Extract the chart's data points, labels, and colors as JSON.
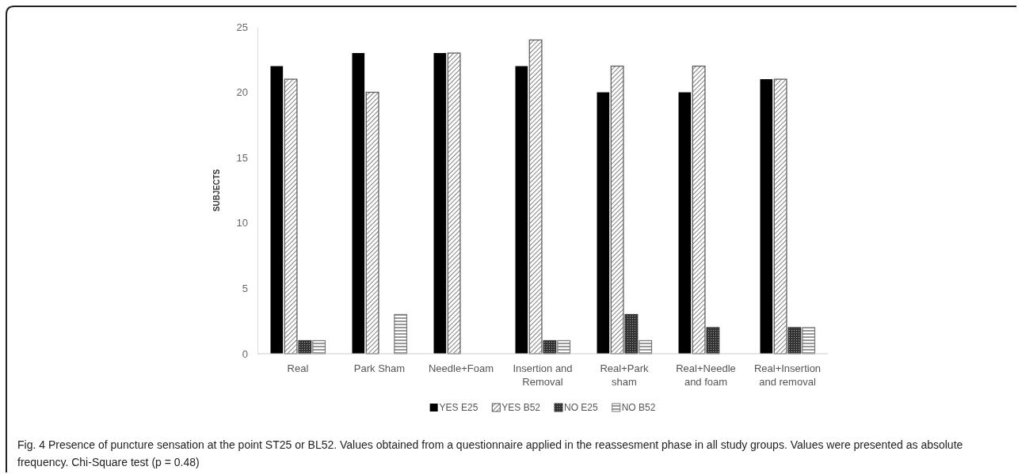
{
  "chart_data": {
    "type": "bar",
    "ylabel": "SUBJECTS",
    "categories": [
      "Real",
      "Park Sham",
      "Needle+Foam",
      "Insertion and Removal",
      "Real+Park sham",
      "Real+Needle and foam",
      "Real+Insertion and removal"
    ],
    "series": [
      {
        "name": "YES E25",
        "color": "#000000",
        "values": [
          22,
          23,
          23,
          22,
          20,
          20,
          21
        ]
      },
      {
        "name": "YES B52",
        "color": "#555555",
        "values": [
          21,
          20,
          23,
          24,
          22,
          22,
          21
        ]
      },
      {
        "name": "NO E25",
        "color": "#333333",
        "values": [
          1,
          0,
          0,
          1,
          3,
          2,
          2
        ]
      },
      {
        "name": "NO B52",
        "color": "#777777",
        "values": [
          1,
          3,
          0,
          1,
          1,
          0,
          2
        ]
      }
    ],
    "ylim": [
      0,
      25
    ],
    "yticks": [
      0,
      5,
      10,
      15,
      20,
      25
    ],
    "grid": false,
    "legend": "bottom",
    "annotations": [
      "Fig. 4 Presence of puncture sensation at the point ST25 or BL52. Values obtained from a questionnaire applied in the reassesment phase in all study groups. Values were presented as absolute frequency. Chi-Square test (p = 0.48)"
    ]
  }
}
